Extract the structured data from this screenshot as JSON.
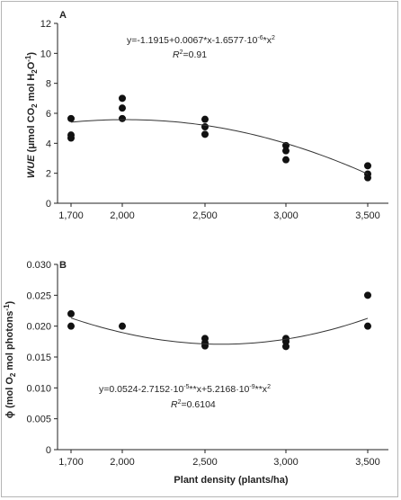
{
  "chart_data": [
    {
      "panel": "A",
      "type": "scatter",
      "ylabel": "WUE (μmol CO2 mol H2O-1)",
      "ylabel_parts": {
        "main": "WUE",
        "rest_a": " (μmol CO",
        "sub1": "2",
        "rest_b": " mol H",
        "sub2": "2",
        "rest_c": "O",
        "sup": "-1",
        "rest_d": ")"
      },
      "xlabel": "",
      "x_ticks": [
        "1,700",
        "2,000",
        "2,500",
        "3,000",
        "3,500"
      ],
      "x_tick_values": [
        1700,
        2000,
        2500,
        3000,
        3500
      ],
      "y_ticks": [
        "0",
        "2",
        "4",
        "6",
        "8",
        "10",
        "12"
      ],
      "ylim": [
        0,
        12
      ],
      "points": [
        {
          "x": 1700,
          "y": 5.65
        },
        {
          "x": 1700,
          "y": 4.55
        },
        {
          "x": 1700,
          "y": 4.35
        },
        {
          "x": 2000,
          "y": 7.0
        },
        {
          "x": 2000,
          "y": 6.35
        },
        {
          "x": 2000,
          "y": 5.65
        },
        {
          "x": 2500,
          "y": 5.6
        },
        {
          "x": 2500,
          "y": 5.1
        },
        {
          "x": 2500,
          "y": 4.6
        },
        {
          "x": 3000,
          "y": 3.85
        },
        {
          "x": 3000,
          "y": 3.5
        },
        {
          "x": 3000,
          "y": 2.9
        },
        {
          "x": 3500,
          "y": 2.5
        },
        {
          "x": 3500,
          "y": 1.95
        },
        {
          "x": 3500,
          "y": 1.7
        }
      ],
      "fit": {
        "a": -1.1915,
        "b": 0.0067,
        "c": -1.6577e-06
      },
      "equation": {
        "p1": "y=-1.1915+0.0067*x-1.6577·10",
        "p1sup": "-6",
        "p2": "*x",
        "p2sup": "2",
        "r2_label": "R",
        "r2_sup": "2",
        "r2_value": "=0.91"
      }
    },
    {
      "panel": "B",
      "type": "scatter",
      "ylabel": "ϕ (mol O2 mol photons-1)",
      "ylabel_parts": {
        "main": "ϕ (mol O",
        "sub1": "2",
        "rest_a": " mol photons",
        "sup": "-1",
        "rest_b": ")"
      },
      "xlabel": "Plant density (plants/ha)",
      "x_ticks": [
        "1,700",
        "2,000",
        "2,500",
        "3,000",
        "3,500"
      ],
      "x_tick_values": [
        1700,
        2000,
        2500,
        3000,
        3500
      ],
      "y_ticks": [
        "0",
        "0.005",
        "0.010",
        "0.015",
        "0.020",
        "0.025",
        "0.030"
      ],
      "ylim": [
        0,
        0.03
      ],
      "points": [
        {
          "x": 1700,
          "y": 0.022
        },
        {
          "x": 1700,
          "y": 0.02
        },
        {
          "x": 2000,
          "y": 0.02
        },
        {
          "x": 2500,
          "y": 0.018
        },
        {
          "x": 2500,
          "y": 0.0173
        },
        {
          "x": 2500,
          "y": 0.0168
        },
        {
          "x": 3000,
          "y": 0.018
        },
        {
          "x": 3000,
          "y": 0.0175
        },
        {
          "x": 3000,
          "y": 0.0167
        },
        {
          "x": 3500,
          "y": 0.025
        },
        {
          "x": 3500,
          "y": 0.02
        }
      ],
      "fit": {
        "a": 0.0524,
        "b": -2.7152e-05,
        "c": 5.2168e-09
      },
      "equation": {
        "p1": "y=0.0524-2.7152·10",
        "p1sup": "-5",
        "p2": "**x+5.2168·10",
        "p2sup": "-9",
        "p3": "**x",
        "p3sup": "2",
        "r2_label": "R",
        "r2_sup": "2",
        "r2_value": "=0.6104"
      }
    }
  ]
}
